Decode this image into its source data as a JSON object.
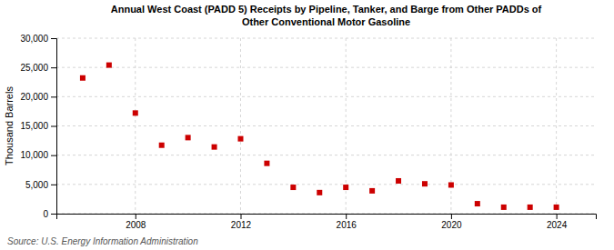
{
  "chart_data": {
    "type": "scatter",
    "title": "Annual West Coast (PADD 5) Receipts by Pipeline, Tanker, and Barge from Other PADDs of\nOther Conventional Motor Gasoline",
    "ylabel": "Thousand Barrels",
    "annotations": [
      "Source: U.S. Energy Information Administration"
    ],
    "x": [
      2006,
      2007,
      2008,
      2009,
      2010,
      2011,
      2012,
      2013,
      2014,
      2015,
      2016,
      2017,
      2018,
      2019,
      2020,
      2021,
      2022,
      2023,
      2024
    ],
    "values": [
      23200,
      25400,
      17200,
      11700,
      13000,
      11400,
      12800,
      8600,
      4500,
      3600,
      4500,
      3900,
      5600,
      5100,
      4900,
      1700,
      1100,
      1100,
      1100
    ],
    "color": "#cc0000",
    "marker": "square",
    "xlim": [
      2005.0,
      2025.5
    ],
    "xticks": [
      2008,
      2012,
      2016,
      2020,
      2024
    ],
    "ylim": [
      0,
      30000
    ],
    "yticks": [
      0,
      {
        "value": 5000,
        "label": "5,000"
      },
      {
        "value": 10000,
        "label": "10,000"
      },
      {
        "value": 15000,
        "label": "15,000"
      },
      {
        "value": 20000,
        "label": "20,000"
      },
      {
        "value": 25000,
        "label": "25,000"
      },
      {
        "value": 30000,
        "label": "30,000"
      }
    ],
    "grid": true
  }
}
